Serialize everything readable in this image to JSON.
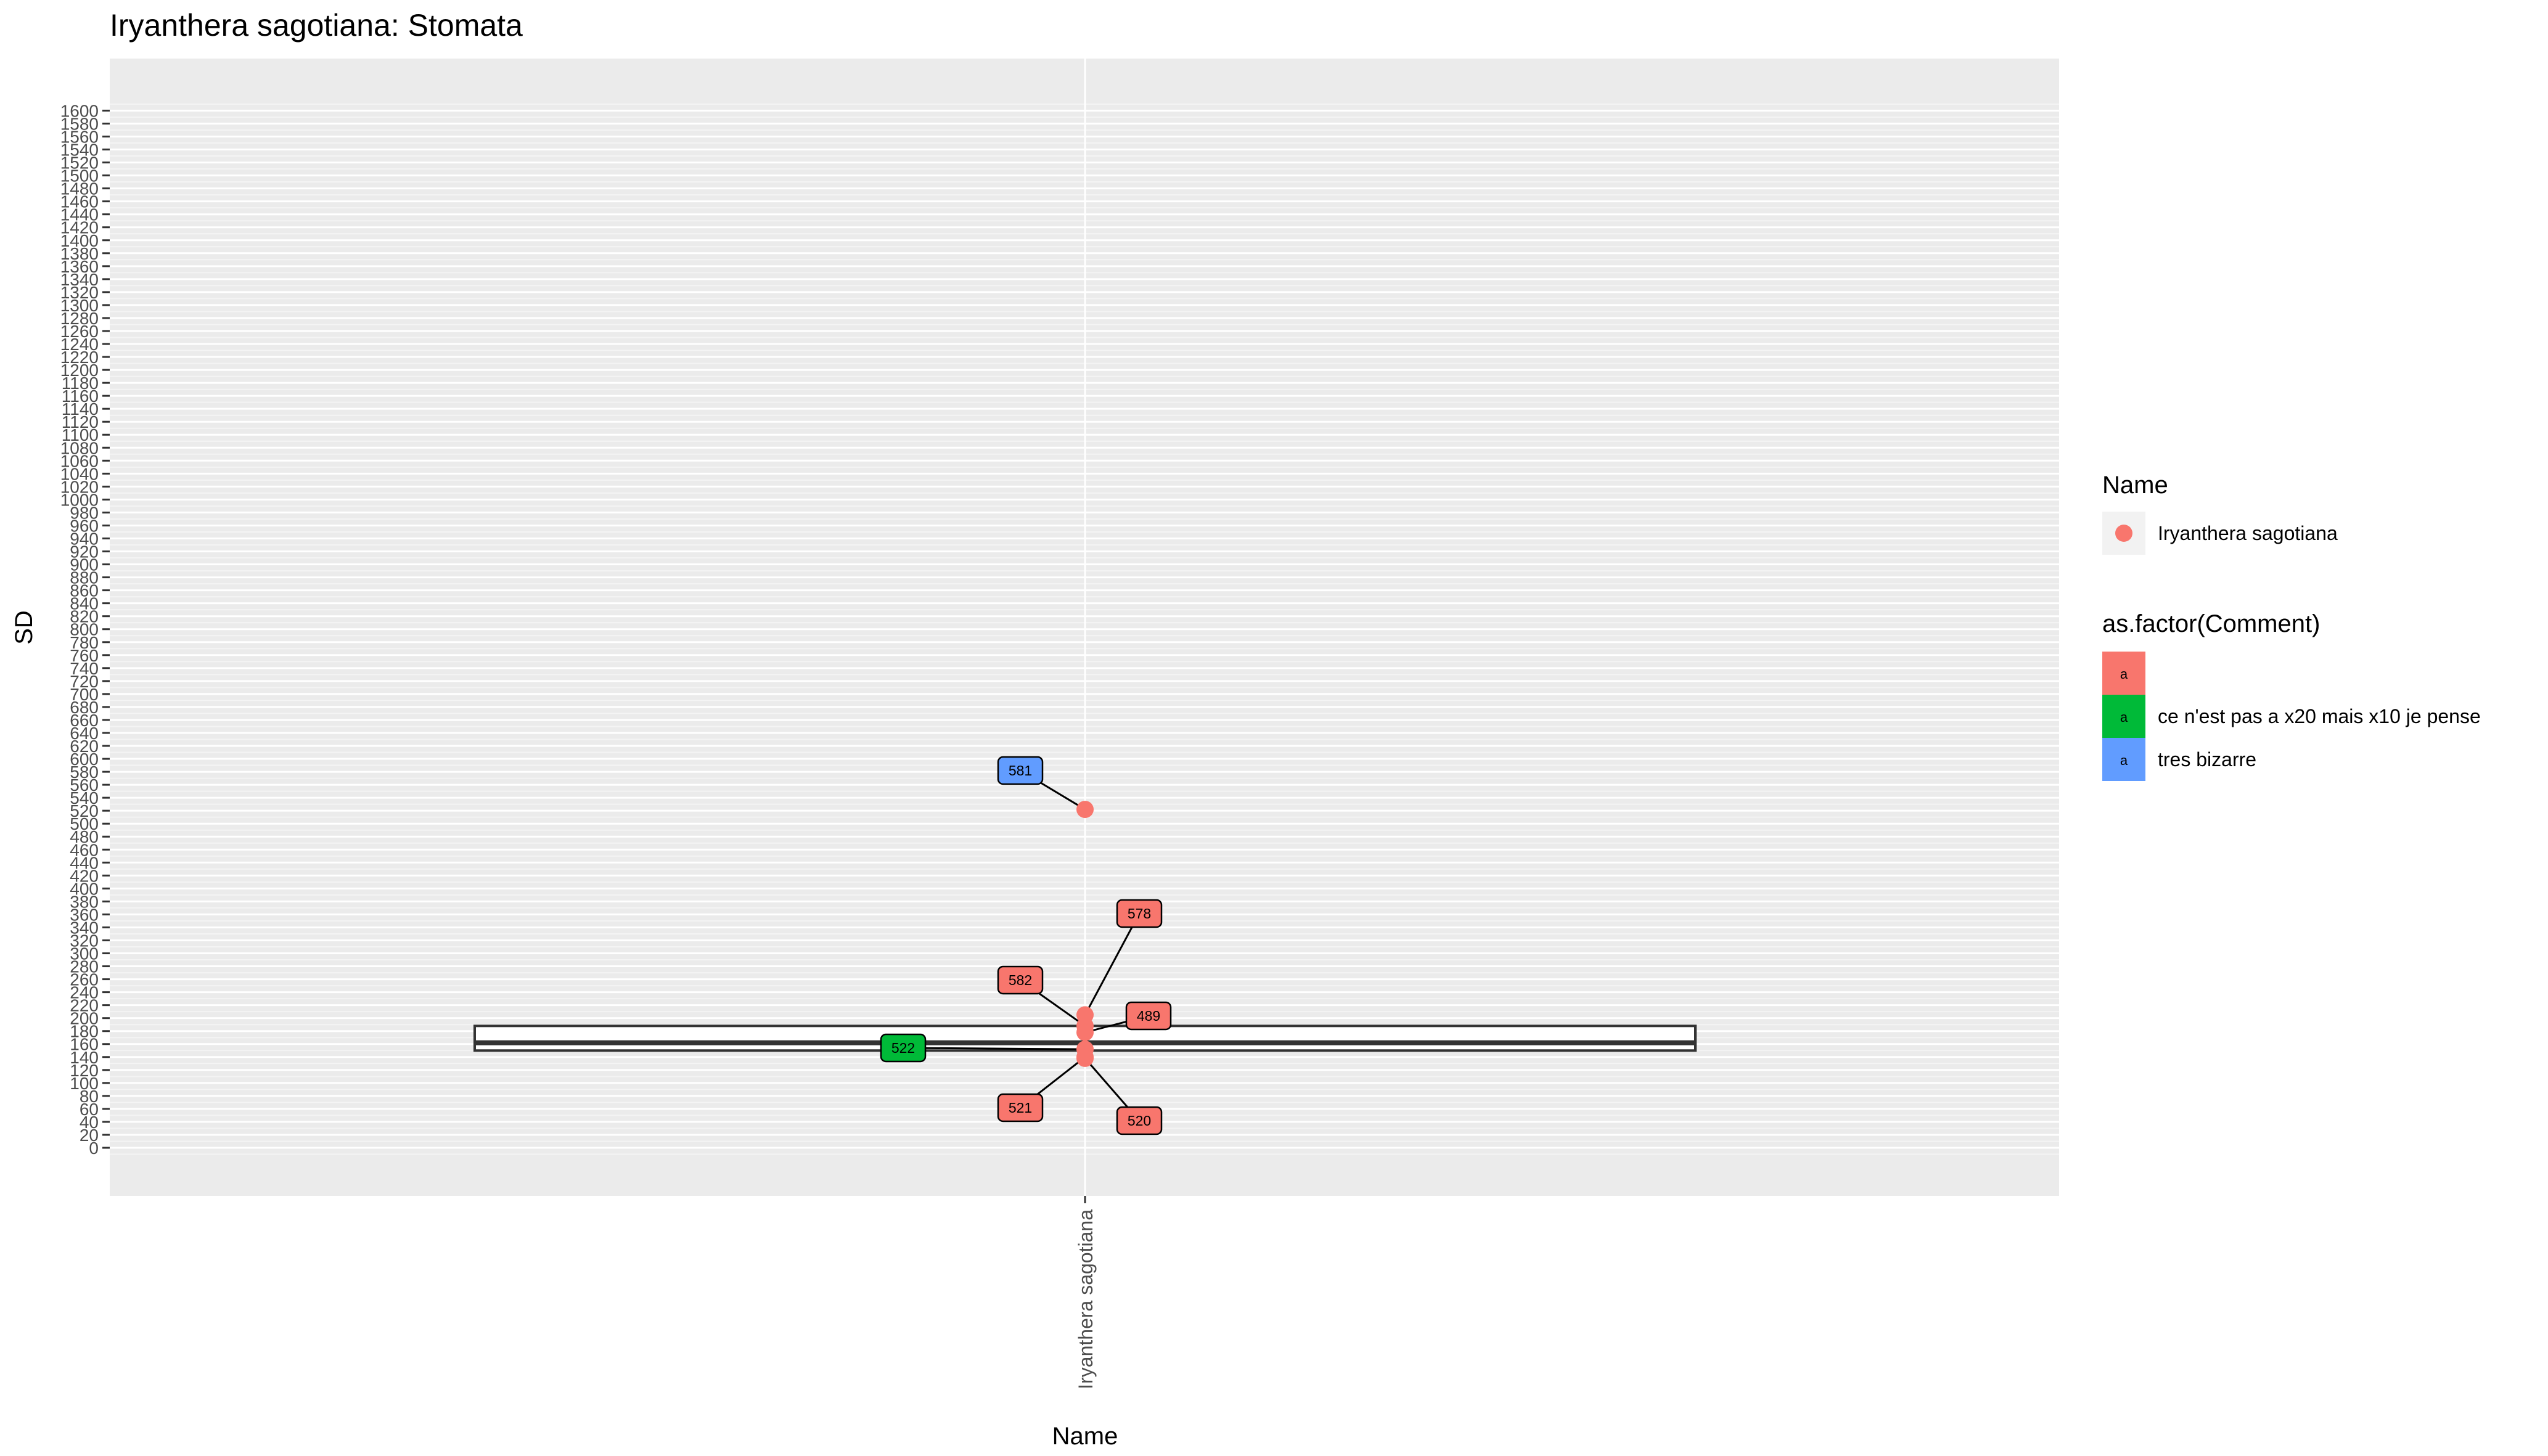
{
  "chart_data": {
    "type": "boxplot",
    "title": "Iryanthera sagotiana: Stomata",
    "xlabel": "Name",
    "ylabel": "SD",
    "categories": [
      "Iryanthera sagotiana"
    ],
    "ylim": [
      -60,
      1690
    ],
    "y_tick_step": 20,
    "y_ticks_range": [
      0,
      1600
    ],
    "grid": true,
    "box": {
      "category": "Iryanthera sagotiana",
      "q1": 150,
      "median": 162,
      "q3": 188,
      "whisker_low": 150,
      "whisker_high": 188
    },
    "points": [
      {
        "id": "581",
        "y": 522,
        "comment": "tres bizarre"
      },
      {
        "id": "578",
        "y": 205,
        "comment": ""
      },
      {
        "id": "582",
        "y": 188,
        "comment": ""
      },
      {
        "id": "489",
        "y": 178,
        "comment": ""
      },
      {
        "id": "522",
        "y": 152,
        "comment": "ce n'est pas a x20 mais x10 je pense"
      },
      {
        "id": "521",
        "y": 140,
        "comment": ""
      },
      {
        "id": "520",
        "y": 138,
        "comment": ""
      }
    ],
    "legend_placement": "right",
    "legends": [
      {
        "title": "Name",
        "type": "point",
        "entries": [
          {
            "label": "Iryanthera sagotiana",
            "color": "#F8766D"
          }
        ]
      },
      {
        "title": "as.factor(Comment)",
        "type": "label",
        "key_letter": "a",
        "entries": [
          {
            "label": "",
            "color": "#F8766D"
          },
          {
            "label": "ce n'est pas a x20 mais x10 je pense",
            "color": "#00BA38"
          },
          {
            "label": "tres bizarre",
            "color": "#619CFF"
          }
        ]
      }
    ],
    "colors": {
      "point": "#F8766D",
      "comment_blank": "#F8766D",
      "comment_green": "#00BA38",
      "comment_blue": "#619CFF",
      "panel_bg": "#EBEBEB",
      "grid": "#FFFFFF"
    }
  }
}
